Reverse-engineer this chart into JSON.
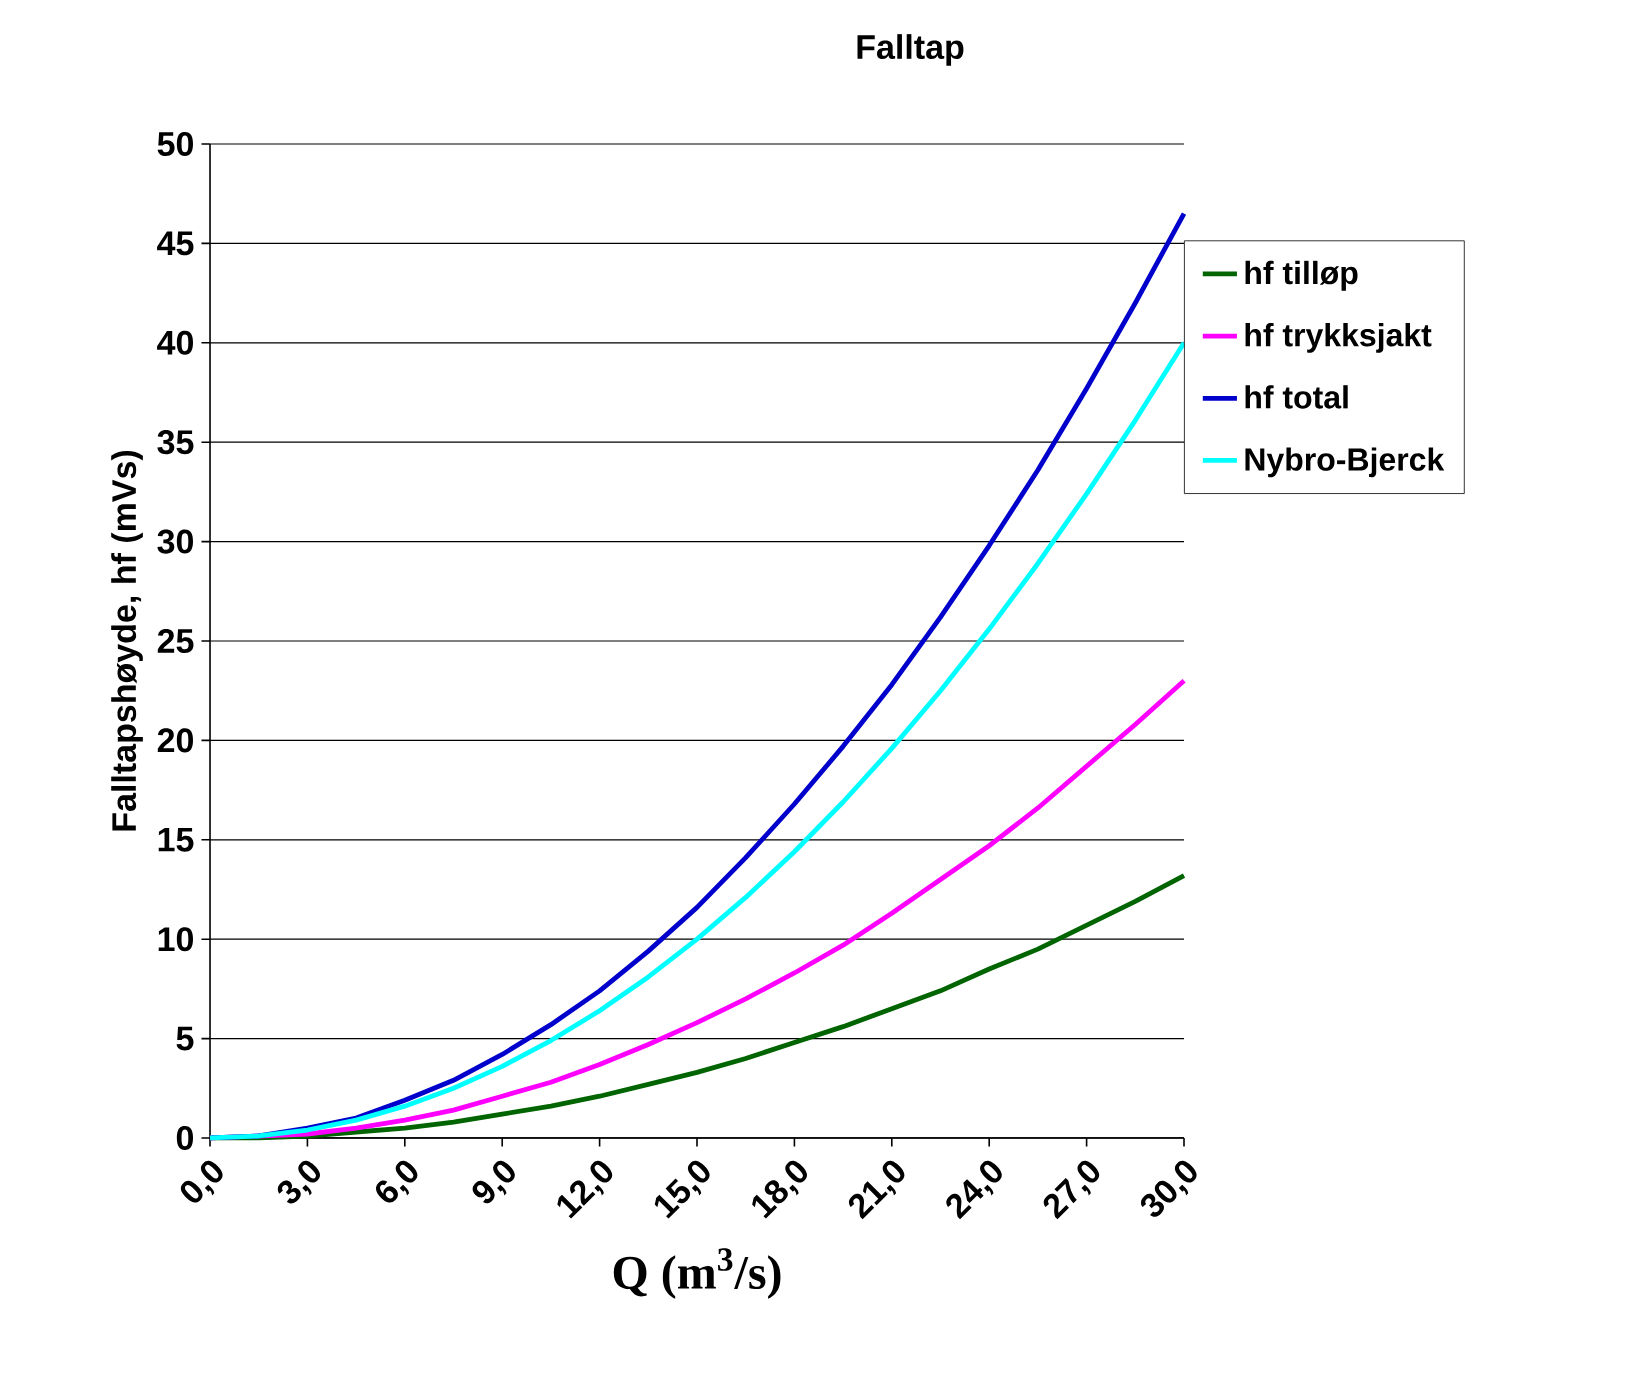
{
  "chart_data": {
    "type": "line",
    "title": "Falltap",
    "xlabel": "Q (m$^{3}$/s)",
    "ylabel": "Falltapshøyde, hf (mVs)",
    "x": [
      0,
      1.5,
      3,
      4.5,
      6,
      7.5,
      9,
      10.5,
      12,
      13.5,
      15,
      16.5,
      18,
      19.5,
      21,
      22.5,
      24,
      25.5,
      27,
      28.5,
      30
    ],
    "series": [
      {
        "name": "hf tilløp",
        "color": "#006400",
        "values": [
          0,
          0,
          0.1,
          0.3,
          0.5,
          0.8,
          1.2,
          1.6,
          2.1,
          2.7,
          3.3,
          4.0,
          4.8,
          5.6,
          6.5,
          7.4,
          8.5,
          9.5,
          10.7,
          11.9,
          13.2
        ]
      },
      {
        "name": "hf trykksjakt",
        "color": "#ff00ff",
        "values": [
          0,
          0.1,
          0.2,
          0.5,
          0.9,
          1.4,
          2.1,
          2.8,
          3.7,
          4.7,
          5.8,
          7.0,
          8.3,
          9.7,
          11.3,
          13.0,
          14.7,
          16.6,
          18.7,
          20.8,
          23.0
        ]
      },
      {
        "name": "hf total",
        "color": "#0000cc",
        "values": [
          0,
          0.1,
          0.5,
          1.0,
          1.9,
          2.9,
          4.2,
          5.7,
          7.4,
          9.4,
          11.6,
          14.1,
          16.8,
          19.7,
          22.8,
          26.2,
          29.8,
          33.6,
          37.7,
          42.0,
          46.5
        ]
      },
      {
        "name": "Nybro-Bjerck",
        "color": "#00ffff",
        "values": [
          0,
          0.1,
          0.4,
          0.9,
          1.6,
          2.5,
          3.6,
          4.9,
          6.4,
          8.1,
          10.0,
          12.1,
          14.4,
          16.9,
          19.6,
          22.5,
          25.6,
          28.9,
          32.4,
          36.1,
          40.0
        ]
      }
    ],
    "xlim": [
      0,
      30
    ],
    "xticks": [
      {
        "value": 0,
        "label": "0,0"
      },
      {
        "value": 3,
        "label": "3,0"
      },
      {
        "value": 6,
        "label": "6,0"
      },
      {
        "value": 9,
        "label": "9,0"
      },
      {
        "value": 12,
        "label": "12,0"
      },
      {
        "value": 15,
        "label": "15,0"
      },
      {
        "value": 18,
        "label": "18,0"
      },
      {
        "value": 21,
        "label": "21,0"
      },
      {
        "value": 24,
        "label": "24,0"
      },
      {
        "value": 27,
        "label": "27,0"
      },
      {
        "value": 30,
        "label": "30,0"
      }
    ],
    "ylim": [
      0,
      50
    ],
    "yticks": [
      0,
      5,
      10,
      15,
      20,
      25,
      30,
      35,
      40,
      45,
      50
    ],
    "grid": "y",
    "legend": "right",
    "marker": "none",
    "line_style": "solid"
  }
}
